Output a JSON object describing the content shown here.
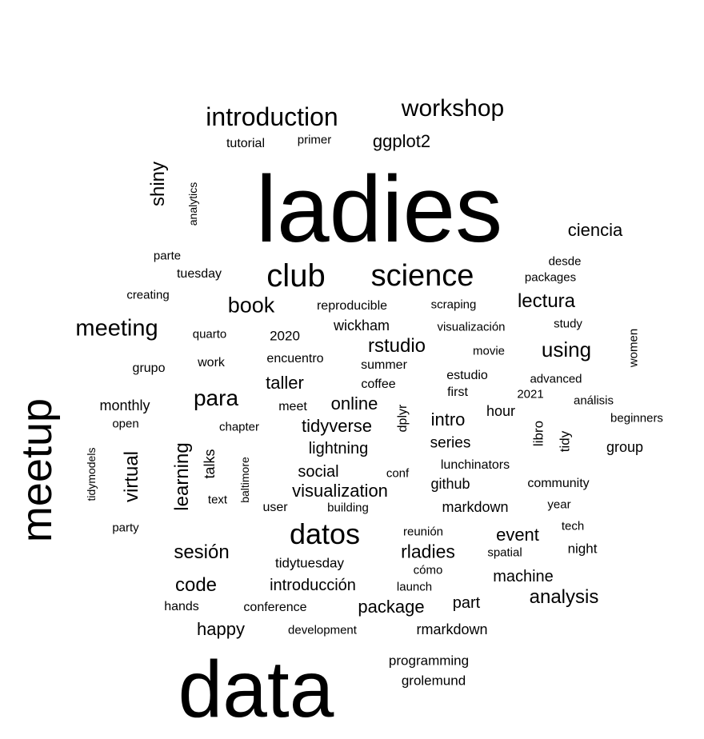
{
  "chart_data": {
    "type": "wordcloud",
    "title": "",
    "text_color": "#000000",
    "background": "#ffffff",
    "words": [
      {
        "text": "ladies",
        "weight": 118
      },
      {
        "text": "data",
        "weight": 100
      },
      {
        "text": "meetup",
        "weight": 54
      },
      {
        "text": "club",
        "weight": 40
      },
      {
        "text": "science",
        "weight": 38
      },
      {
        "text": "datos",
        "weight": 36
      },
      {
        "text": "introduction",
        "weight": 32
      },
      {
        "text": "workshop",
        "weight": 30
      },
      {
        "text": "meeting",
        "weight": 29
      },
      {
        "text": "para",
        "weight": 28
      },
      {
        "text": "book",
        "weight": 27
      },
      {
        "text": "using",
        "weight": 26
      },
      {
        "text": "code",
        "weight": 24
      },
      {
        "text": "analysis",
        "weight": 24
      },
      {
        "text": "sesión",
        "weight": 24
      },
      {
        "text": "lectura",
        "weight": 24
      },
      {
        "text": "rstudio",
        "weight": 24
      },
      {
        "text": "learning",
        "weight": 24
      },
      {
        "text": "shiny",
        "weight": 24
      },
      {
        "text": "virtual",
        "weight": 24
      },
      {
        "text": "rladies",
        "weight": 23
      },
      {
        "text": "ciencia",
        "weight": 22
      },
      {
        "text": "ggplot2",
        "weight": 22
      },
      {
        "text": "taller",
        "weight": 22
      },
      {
        "text": "tidyverse",
        "weight": 22
      },
      {
        "text": "happy",
        "weight": 22
      },
      {
        "text": "visualization",
        "weight": 22
      },
      {
        "text": "package",
        "weight": 22
      },
      {
        "text": "event",
        "weight": 22
      },
      {
        "text": "intro",
        "weight": 22
      },
      {
        "text": "online",
        "weight": 22
      },
      {
        "text": "machine",
        "weight": 20
      },
      {
        "text": "introducción",
        "weight": 20
      },
      {
        "text": "part",
        "weight": 20
      },
      {
        "text": "social",
        "weight": 20
      },
      {
        "text": "lightning",
        "weight": 20
      },
      {
        "text": "series",
        "weight": 19
      },
      {
        "text": "github",
        "weight": 18
      },
      {
        "text": "markdown",
        "weight": 18
      },
      {
        "text": "rmarkdown",
        "weight": 18
      },
      {
        "text": "monthly",
        "weight": 18
      },
      {
        "text": "wickham",
        "weight": 18
      },
      {
        "text": "group",
        "weight": 18
      },
      {
        "text": "hour",
        "weight": 18
      },
      {
        "text": "talks",
        "weight": 18
      },
      {
        "text": "programming",
        "weight": 17
      },
      {
        "text": "grolemund",
        "weight": 17
      },
      {
        "text": "tidy",
        "weight": 17
      },
      {
        "text": "libro",
        "weight": 17
      },
      {
        "text": "night",
        "weight": 17
      },
      {
        "text": "2020",
        "weight": 17
      },
      {
        "text": "tidytuesday",
        "weight": 17
      },
      {
        "text": "encuentro",
        "weight": 16
      },
      {
        "text": "reproducible",
        "weight": 16
      },
      {
        "text": "tuesday",
        "weight": 16
      },
      {
        "text": "tutorial",
        "weight": 16
      },
      {
        "text": "meet",
        "weight": 16
      },
      {
        "text": "dplyr",
        "weight": 16
      },
      {
        "text": "estudio",
        "weight": 16
      },
      {
        "text": "first",
        "weight": 16
      },
      {
        "text": "user",
        "weight": 16
      },
      {
        "text": "work",
        "weight": 16
      },
      {
        "text": "grupo",
        "weight": 16
      },
      {
        "text": "community",
        "weight": 16
      },
      {
        "text": "hands",
        "weight": 16
      },
      {
        "text": "conference",
        "weight": 16
      },
      {
        "text": "summer",
        "weight": 16
      },
      {
        "text": "coffee",
        "weight": 16
      },
      {
        "text": "lunchinators",
        "weight": 16
      },
      {
        "text": "study",
        "weight": 15
      },
      {
        "text": "advanced",
        "weight": 15
      },
      {
        "text": "parte",
        "weight": 15
      },
      {
        "text": "primer",
        "weight": 15
      },
      {
        "text": "packages",
        "weight": 15
      },
      {
        "text": "desde",
        "weight": 15
      },
      {
        "text": "scraping",
        "weight": 15
      },
      {
        "text": "visualización",
        "weight": 15
      },
      {
        "text": "movie",
        "weight": 15
      },
      {
        "text": "análisis",
        "weight": 15
      },
      {
        "text": "2021",
        "weight": 15
      },
      {
        "text": "women",
        "weight": 15
      },
      {
        "text": "beginners",
        "weight": 15
      },
      {
        "text": "creating",
        "weight": 15
      },
      {
        "text": "quarto",
        "weight": 15
      },
      {
        "text": "chapter",
        "weight": 15
      },
      {
        "text": "open",
        "weight": 15
      },
      {
        "text": "text",
        "weight": 15
      },
      {
        "text": "building",
        "weight": 15
      },
      {
        "text": "conf",
        "weight": 15
      },
      {
        "text": "year",
        "weight": 15
      },
      {
        "text": "tech",
        "weight": 15
      },
      {
        "text": "reunión",
        "weight": 15
      },
      {
        "text": "spatial",
        "weight": 15
      },
      {
        "text": "cómo",
        "weight": 15
      },
      {
        "text": "launch",
        "weight": 15
      },
      {
        "text": "party",
        "weight": 15
      },
      {
        "text": "development",
        "weight": 15
      },
      {
        "text": "tidymodels",
        "weight": 14
      },
      {
        "text": "baltimore",
        "weight": 14
      },
      {
        "text": "analytics",
        "weight": 14
      }
    ]
  }
}
